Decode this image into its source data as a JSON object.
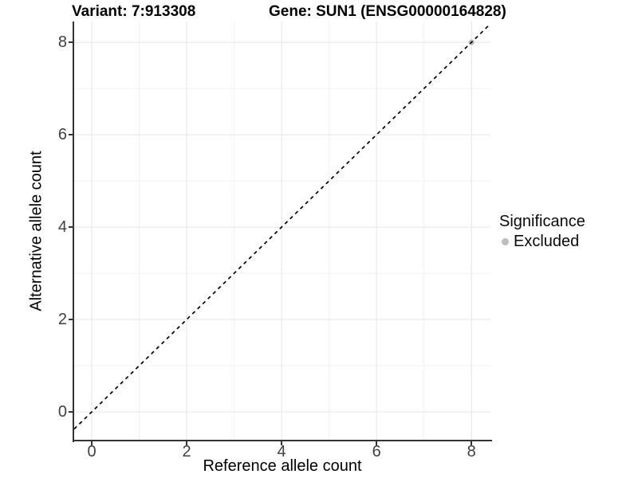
{
  "chart_data": {
    "type": "scatter",
    "titles": {
      "left": "Variant: 7:913308",
      "right": "Gene: SUN1 (ENSG00000164828)"
    },
    "xlabel": "Reference allele count",
    "ylabel": "Alternative allele count",
    "xlim": [
      -0.37,
      8.4
    ],
    "ylim": [
      -0.62,
      8.45
    ],
    "x_ticks": [
      0,
      2,
      4,
      6,
      8
    ],
    "y_ticks": [
      0,
      2,
      4,
      6,
      8
    ],
    "x_minor_ticks": [
      1,
      3,
      5,
      7
    ],
    "y_minor_ticks": [
      1,
      3,
      5,
      7
    ],
    "grid": "major+minor",
    "legend": {
      "title": "Significance",
      "position": "right-middle",
      "items": [
        {
          "label": "Excluded",
          "color": "#bdbdbd"
        }
      ]
    },
    "series": [
      {
        "name": "Excluded",
        "color": "#bdbdbd",
        "points": [
          {
            "x": 8,
            "y": 8
          }
        ]
      }
    ],
    "reference_line": {
      "slope": 1,
      "intercept": 0,
      "style": "dashed",
      "color": "#000000"
    }
  },
  "style": {
    "background": "#ffffff",
    "grid_major": "#e4e4e4",
    "grid_minor": "#f2f2f2",
    "axis_line": "#333333",
    "tick_mark": "#333333",
    "tick_label": "#404040",
    "point_color": "#bdbdbd"
  }
}
